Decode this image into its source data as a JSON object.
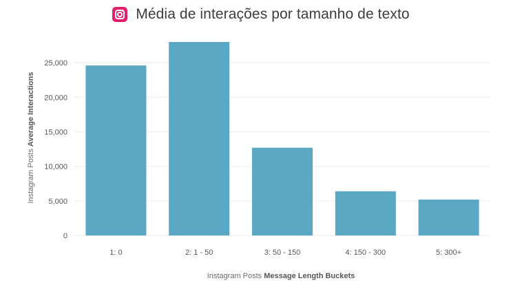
{
  "title_icon": "instagram-icon",
  "colors": {
    "bar": "#5ba8c4",
    "grid": "#ececec",
    "icon": "#e0226e"
  },
  "chart_data": {
    "type": "bar",
    "title": "Média de interações por tamanho de texto",
    "categories": [
      "1: 0",
      "2: 1 - 50",
      "3: 50 - 150",
      "4: 150 - 300",
      "5: 300+"
    ],
    "values": [
      24600,
      28000,
      12700,
      6400,
      5200
    ],
    "ylim": [
      0,
      28000
    ],
    "yticks": [
      0,
      5000,
      10000,
      15000,
      20000,
      25000
    ],
    "ytick_labels": [
      "0",
      "5,000",
      "10,000",
      "15,000",
      "20,000",
      "25,000"
    ],
    "xlabel_prefix": "Instagram Posts",
    "xlabel_bold": "Message Length Buckets",
    "ylabel_prefix": "Instagram Posts",
    "ylabel_bold": "Average Interactions",
    "grid": true
  }
}
